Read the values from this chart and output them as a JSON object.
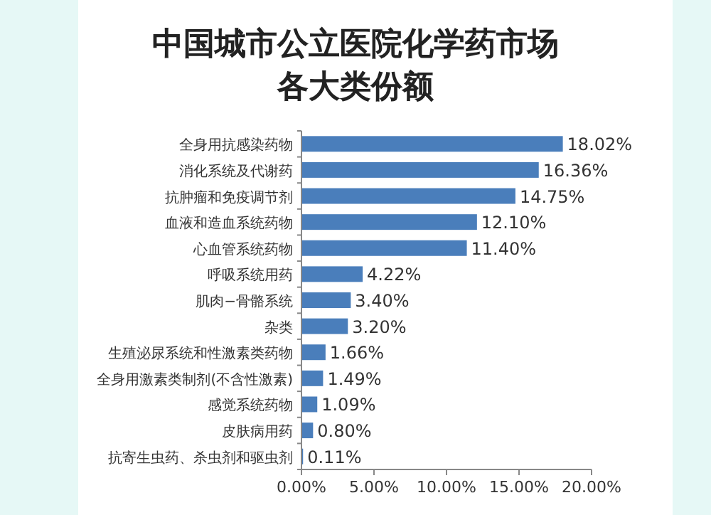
{
  "chart_data": {
    "type": "bar",
    "orientation": "horizontal",
    "title": "中国城市公立医院化学药市场各大类份额",
    "categories": [
      "全身用抗感染药物",
      "消化系统及代谢药",
      "抗肿瘤和免疫调节剂",
      "血液和造血系统药物",
      "心血管系统药物",
      "呼吸系统用药",
      "肌肉−骨骼系统",
      "杂类",
      "生殖泌尿系统和性激素类药物",
      "全身用激素类制剂(不含性激素)",
      "感觉系统药物",
      "皮肤病用药",
      "抗寄生虫药、杀虫剂和驱虫剂"
    ],
    "values": [
      18.02,
      16.36,
      14.75,
      12.1,
      11.4,
      4.22,
      3.4,
      3.2,
      1.66,
      1.49,
      1.09,
      0.8,
      0.11
    ],
    "value_labels": [
      "18.02%",
      "16.36%",
      "14.75%",
      "12.10%",
      "11.40%",
      "4.22%",
      "3.40%",
      "3.20%",
      "1.66%",
      "1.49%",
      "1.09%",
      "0.80%",
      "0.11%"
    ],
    "color": "#4a7ebb",
    "xlim": [
      0,
      20
    ],
    "xticks": [
      {
        "value": 0,
        "label": "0.00%"
      },
      {
        "value": 5,
        "label": "5.00%"
      },
      {
        "value": 10,
        "label": "10.00%"
      },
      {
        "value": 15,
        "label": "15.00%"
      },
      {
        "value": 20,
        "label": "20.00%"
      }
    ],
    "grid": false
  }
}
